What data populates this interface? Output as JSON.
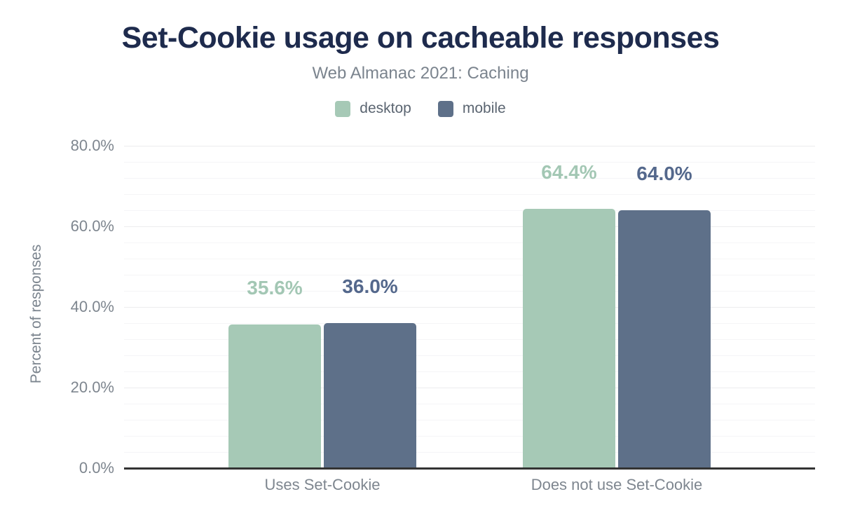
{
  "chart_data": {
    "type": "bar",
    "title": "Set-Cookie usage on cacheable responses",
    "subtitle": "Web Almanac 2021: Caching",
    "ylabel": "Percent of responses",
    "xlabel": "",
    "categories": [
      "Uses Set-Cookie",
      "Does not use Set-Cookie"
    ],
    "series": [
      {
        "name": "desktop",
        "values": [
          35.6,
          64.4
        ],
        "labels": [
          "35.6%",
          "64.4%"
        ],
        "color": "#a6c9b6",
        "label_color": "#a3c7b4"
      },
      {
        "name": "mobile",
        "values": [
          36.0,
          64.0
        ],
        "labels": [
          "36.0%",
          "64.0%"
        ],
        "color": "#5e7089",
        "label_color": "#54688c"
      }
    ],
    "ylim": [
      0,
      80
    ],
    "yticks": [
      {
        "value": 0,
        "label": "0.0%"
      },
      {
        "value": 20,
        "label": "20.0%"
      },
      {
        "value": 40,
        "label": "40.0%"
      },
      {
        "value": 60,
        "label": "60.0%"
      },
      {
        "value": 80,
        "label": "80.0%"
      }
    ],
    "minor_tick_step": 4,
    "grid": "horizontal-major-and-minor",
    "legend_position": "top-center"
  },
  "colors": {
    "background": "#ffffff",
    "title": "#1e2b4d",
    "subtitle": "#7b848e",
    "legend_text": "#5b6571",
    "axis_text": "#7e868f",
    "axis_line": "#333333",
    "grid_major": "#ececee",
    "grid_minor": "#f5f5f7"
  }
}
